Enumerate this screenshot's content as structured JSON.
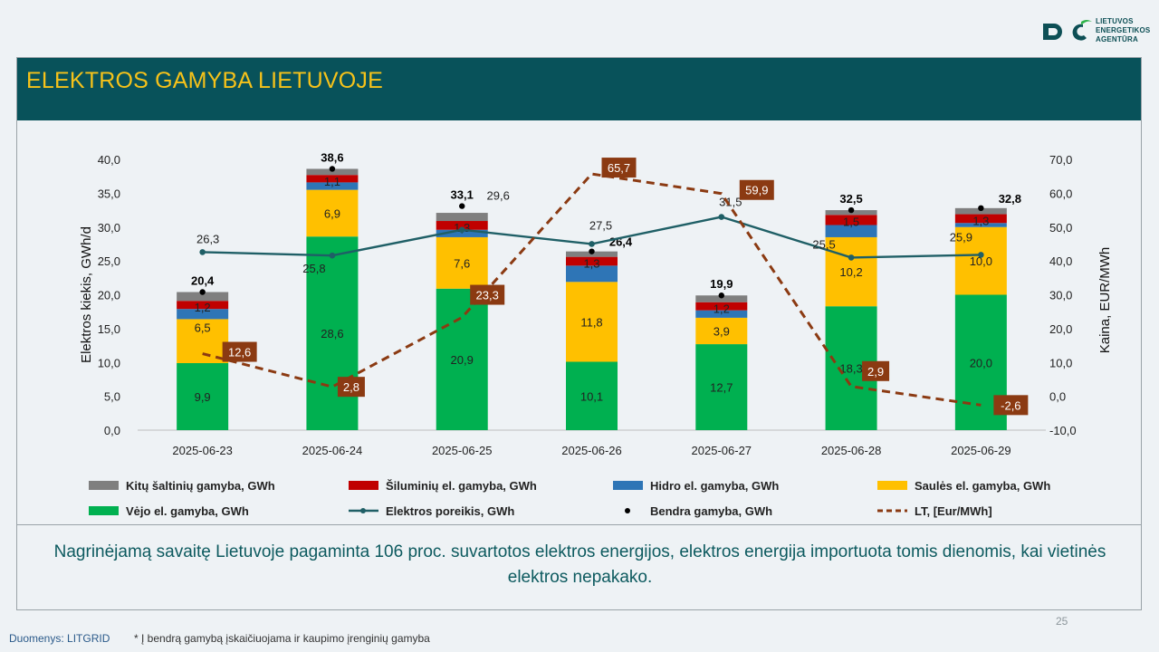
{
  "logo": {
    "line1": "LIETUVOS",
    "line2": "ENERGETIKOS",
    "line3": "AGENTŪRA"
  },
  "title": "ELEKTROS GAMYBA LIETUVOJE",
  "summary": "Nagrinėjamą savaitę Lietuvoje pagaminta 106 proc. suvartotos elektros energijos, elektros energija importuota tomis dienomis, kai vietinės elektros nepakako.",
  "page_number": "25",
  "source": "Duomenys: LITGRID",
  "footnote": "* Į bendrą gamybą įskaičiuojama ir kaupimo įrenginių gamyba",
  "colors": {
    "title_band": "#08525a",
    "title_text": "#f6c21a",
    "wind": "#00b050",
    "solar": "#ffc000",
    "hydro": "#2e75b6",
    "thermal": "#c00000",
    "other": "#7f7f7f",
    "demand": "#1f5f66",
    "price": "#8b3a12"
  },
  "chart_data": {
    "type": "bar",
    "stacked": true,
    "categories": [
      "2025-06-23",
      "2025-06-24",
      "2025-06-25",
      "2025-06-26",
      "2025-06-27",
      "2025-06-28",
      "2025-06-29"
    ],
    "ylabel": "Elektros kiekis, GWh/d",
    "y2label": "Kaina, EUR/MWh",
    "ylim": [
      0,
      40
    ],
    "y2lim": [
      -10,
      70
    ],
    "yticks": [
      "0,0",
      "5,0",
      "10,0",
      "15,0",
      "20,0",
      "25,0",
      "30,0",
      "35,0",
      "40,0"
    ],
    "y2ticks": [
      "-10,0",
      "0,0",
      "10,0",
      "20,0",
      "30,0",
      "40,0",
      "50,0",
      "60,0",
      "70,0"
    ],
    "series": [
      {
        "name": "Vėjo el. gamyba, GWh",
        "values": [
          9.9,
          28.6,
          20.9,
          10.1,
          12.7,
          18.3,
          20.0
        ],
        "labels": [
          "9,9",
          "28,6",
          "20,9",
          "10,1",
          "12,7",
          "18,3",
          "20,0"
        ]
      },
      {
        "name": "Saulės el. gamyba, GWh",
        "values": [
          6.5,
          6.9,
          7.6,
          11.8,
          3.9,
          10.2,
          10.0
        ],
        "labels": [
          "6,5",
          "6,9",
          "7,6",
          "11,8",
          "3,9",
          "10,2",
          "10,0"
        ]
      },
      {
        "name": "Hidro el. gamyba, GWh",
        "values": [
          1.5,
          1.1,
          1.1,
          2.4,
          1.1,
          1.8,
          0.6
        ]
      },
      {
        "name": "Šiluminių el. gamyba, GWh",
        "values": [
          1.2,
          1.1,
          1.3,
          1.3,
          1.2,
          1.5,
          1.3
        ],
        "labels": [
          "1,2",
          "1,1",
          "1,3",
          "1,3",
          "1,2",
          "1,5",
          "1,3"
        ]
      },
      {
        "name": "Kitų šaltinių gamyba,  GWh",
        "values": [
          1.3,
          0.9,
          1.2,
          0.8,
          1.0,
          0.7,
          0.9
        ]
      }
    ],
    "total": {
      "name": "Bendra gamyba, GWh",
      "values": [
        20.4,
        38.6,
        33.1,
        26.4,
        19.9,
        32.5,
        32.8
      ],
      "labels": [
        "20,4",
        "38,6",
        "33,1",
        "26,4",
        "19,9",
        "32,5",
        "32,8"
      ]
    },
    "demand": {
      "name": "Elektros poreikis, GWh",
      "values": [
        26.3,
        25.8,
        29.6,
        27.5,
        31.5,
        25.5,
        25.9
      ],
      "labels": [
        "26,3",
        "25,8",
        "29,6",
        "27,5",
        "31,5",
        "25,5",
        "25,9"
      ]
    },
    "price": {
      "name": "LT, [Eur/MWh]",
      "values": [
        12.6,
        2.8,
        23.3,
        65.7,
        59.9,
        2.9,
        -2.6
      ],
      "labels": [
        "12,6",
        "2,8",
        "23,3",
        "65,7",
        "59,9",
        "2,9",
        "-2,6"
      ]
    },
    "legend_order": [
      "Kitų šaltinių gamyba,  GWh",
      "Šiluminių el. gamyba, GWh",
      "Hidro el. gamyba, GWh",
      "Saulės el. gamyba, GWh",
      "Vėjo el. gamyba, GWh",
      "Elektros poreikis, GWh",
      "Bendra gamyba, GWh",
      "LT, [Eur/MWh]"
    ],
    "legend_position": "bottom"
  }
}
